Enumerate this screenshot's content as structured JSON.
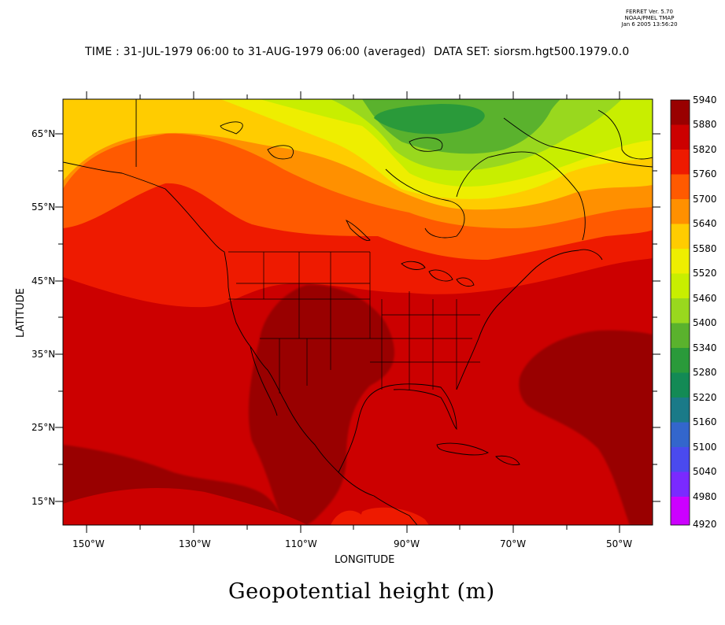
{
  "header": {
    "ferret_version": "FERRET Ver. 5.70",
    "ferret_org": "NOAA/PMEL TMAP",
    "ferret_timestamp": "Jan  6 2005 13:56:20",
    "time_range": "TIME : 31-JUL-1979 06:00 to 31-AUG-1979 06:00 (averaged)",
    "dataset_label": "DATA SET: siorsm.hgt500.1979.0.0"
  },
  "map": {
    "xlabel": "LONGITUDE",
    "ylabel": "LATITUDE",
    "lon_ticks": [
      "150°W",
      "130°W",
      "110°W",
      "90°W",
      "70°W",
      "50°W"
    ],
    "lat_ticks": [
      "65°N",
      "55°N",
      "45°N",
      "35°N",
      "25°N",
      "15°N"
    ],
    "lon_range": [
      -150,
      -44
    ],
    "lat_range": [
      11.5,
      69.5
    ],
    "variable_title": "Geopotential height (m)"
  },
  "colorbar": {
    "labels": [
      "5940",
      "5880",
      "5820",
      "5760",
      "5700",
      "5640",
      "5580",
      "5520",
      "5460",
      "5400",
      "5340",
      "5280",
      "5220",
      "5160",
      "5100",
      "5040",
      "4980",
      "4920"
    ],
    "colors": [
      "#990000",
      "#cc0000",
      "#ee1a00",
      "#ff5a00",
      "#ff9000",
      "#ffcc00",
      "#eeee00",
      "#c8ee00",
      "#99d81e",
      "#5ab22d",
      "#2a9a3a",
      "#138a55",
      "#1a7a88",
      "#3366cc",
      "#4a4aee",
      "#7a2aff",
      "#cc00ff"
    ]
  },
  "chart_data": {
    "type": "heatmap",
    "title": "Geopotential height (m)",
    "xlabel": "LONGITUDE",
    "ylabel": "LATITUDE",
    "xlim": [
      -150,
      -44
    ],
    "ylim": [
      11.5,
      69.5
    ],
    "levels": [
      4920,
      4980,
      5040,
      5100,
      5160,
      5220,
      5280,
      5340,
      5400,
      5460,
      5520,
      5580,
      5640,
      5700,
      5760,
      5820,
      5880,
      5940
    ],
    "notes": [
      "maximum > 5880 over south-central United States and Mexico",
      "maximum > 5880 over central Atlantic near 30°N 55°W",
      "minimum ~5340 over Hudson Bay / Baffin region"
    ]
  }
}
